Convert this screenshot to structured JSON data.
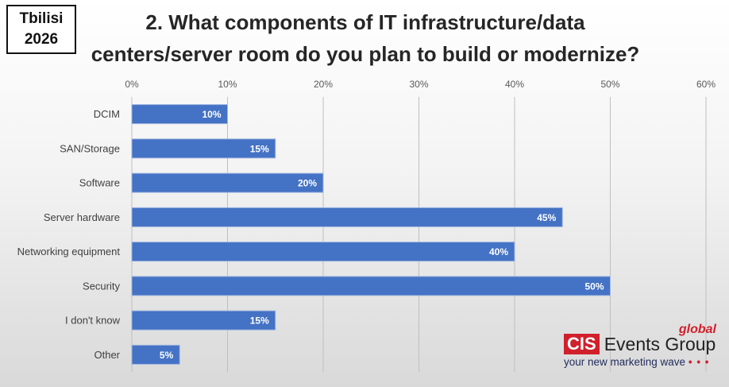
{
  "city_box": {
    "line1": "Tbilisi",
    "line2": "2026"
  },
  "title": {
    "line1": "2. What components of IT infrastructure/data",
    "line2": "centers/server room do you plan to build or modernize?"
  },
  "logo": {
    "global": "global",
    "cis": "CIS",
    "events": "Events Group",
    "tagline": "your new marketing wave",
    "dots": "• • •"
  },
  "colors": {
    "bar": "#4472C4",
    "grid": "#bfbfbf"
  },
  "chart_data": {
    "type": "bar",
    "orientation": "horizontal",
    "title": "2. What components of IT infrastructure/data centers/server room do you plan to build or modernize?",
    "categories": [
      "DCIM",
      "SAN/Storage",
      "Software",
      "Server hardware",
      "Networking equipment",
      "Security",
      "I don't know",
      "Other"
    ],
    "values": [
      10,
      15,
      20,
      45,
      40,
      50,
      15,
      5
    ],
    "data_labels": [
      "10%",
      "15%",
      "20%",
      "45%",
      "40%",
      "50%",
      "15%",
      "5%"
    ],
    "xlim": [
      0,
      60
    ],
    "xticks": [
      0,
      10,
      20,
      30,
      40,
      50,
      60
    ],
    "xtick_labels": [
      "0%",
      "10%",
      "20%",
      "30%",
      "40%",
      "50%",
      "60%"
    ],
    "axis_position": "top",
    "grid": true,
    "legend": "none"
  }
}
